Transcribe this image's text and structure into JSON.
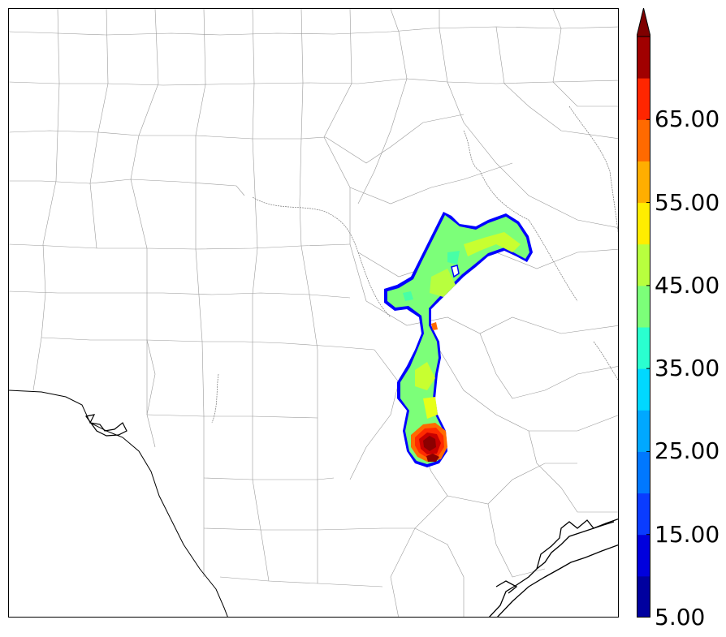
{
  "map": {
    "region": "Central and South Texas",
    "features": [
      "county-borders",
      "state-border",
      "coastline",
      "river-lines"
    ],
    "overlay": {
      "type": "filled-contour",
      "shape": "narrow north-south plume with eastward branch in the north",
      "peak_colors": [
        "#8b0000",
        "#c80000",
        "#ff2a00"
      ],
      "body_colors": [
        "#7cff79",
        "#a6ff52",
        "#48ffa6",
        "#ccff2b",
        "#ffe500"
      ],
      "edge_color": "#0000ff"
    }
  },
  "colorbar": {
    "extend": "max",
    "levels": [
      5,
      10,
      15,
      20,
      25,
      30,
      35,
      40,
      45,
      50,
      55,
      60,
      65,
      70
    ],
    "colors": [
      "#00009f",
      "#0000dd",
      "#0a3cff",
      "#0078ff",
      "#00a8ff",
      "#00d8ff",
      "#2affd0",
      "#7cff79",
      "#b8ff3e",
      "#ffed00",
      "#ffae00",
      "#ff6a00",
      "#ff2600",
      "#a00000"
    ],
    "extend_color": "#7f0000",
    "labels": [
      "65.00",
      "55.00",
      "45.00",
      "35.00",
      "25.00",
      "15.00",
      "5.00"
    ]
  }
}
